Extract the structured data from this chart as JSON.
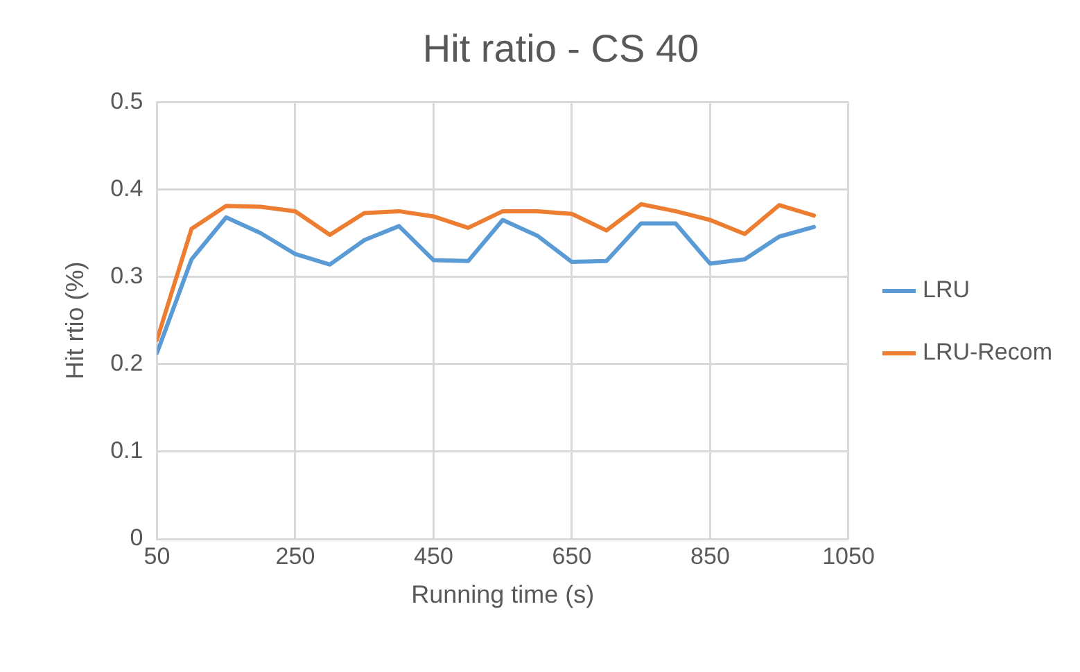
{
  "chart_data": {
    "type": "line",
    "title": "Hit ratio - CS 40",
    "xlabel": "Running time (s)",
    "ylabel": "Hit rtio (%)",
    "x": [
      50,
      100,
      150,
      200,
      250,
      300,
      350,
      400,
      450,
      500,
      550,
      600,
      650,
      700,
      750,
      800,
      850,
      900,
      950,
      1000
    ],
    "series": [
      {
        "name": "LRU",
        "color": "#5b9bd5",
        "values": [
          0.213,
          0.32,
          0.368,
          0.35,
          0.326,
          0.314,
          0.342,
          0.358,
          0.319,
          0.318,
          0.365,
          0.347,
          0.317,
          0.318,
          0.361,
          0.361,
          0.315,
          0.32,
          0.346,
          0.357
        ]
      },
      {
        "name": "LRU-Recom",
        "color": "#ed7d31",
        "values": [
          0.228,
          0.355,
          0.381,
          0.38,
          0.375,
          0.348,
          0.373,
          0.375,
          0.369,
          0.356,
          0.375,
          0.375,
          0.372,
          0.353,
          0.383,
          0.375,
          0.365,
          0.349,
          0.382,
          0.37
        ]
      }
    ],
    "xlim": [
      50,
      1050
    ],
    "xticks": [
      50,
      250,
      450,
      650,
      850,
      1050
    ],
    "ylim": [
      0,
      0.5
    ],
    "yticks": [
      0,
      0.1,
      0.2,
      0.3,
      0.4,
      0.5
    ],
    "grid": true,
    "legend": "right",
    "marker": "none",
    "line_style": "solid"
  }
}
